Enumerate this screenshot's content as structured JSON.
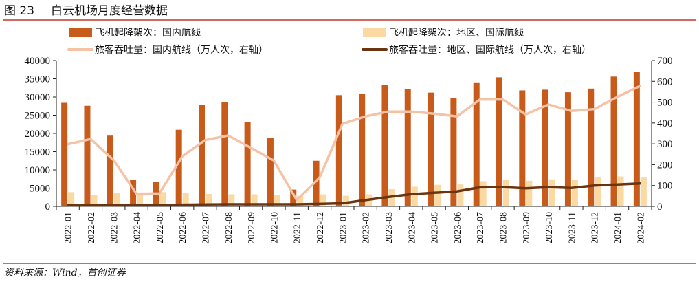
{
  "figure": {
    "label": "图 23",
    "title": "白云机场月度经营数据",
    "source": "资料来源：Wind，首创证券"
  },
  "colors": {
    "rule": "#c0392b",
    "bar_domestic": "#c85a1a",
    "bar_intl": "#fbd9a3",
    "line_domestic": "#f5c2a5",
    "line_intl": "#6b3410"
  },
  "chart_data": {
    "type": "bar",
    "categories": [
      "2022-01",
      "2022-02",
      "2022-03",
      "2022-04",
      "2022-05",
      "2022-06",
      "2022-07",
      "2022-08",
      "2022-09",
      "2022-10",
      "2022-11",
      "2022-12",
      "2023-01",
      "2023-02",
      "2023-03",
      "2023-04",
      "2023-05",
      "2023-06",
      "2023-07",
      "2023-08",
      "2023-09",
      "2023-10",
      "2023-11",
      "2023-12",
      "2024-01",
      "2024-02"
    ],
    "series": [
      {
        "name": "飞机起降架次：国内航线",
        "kind": "bar",
        "axis": "left",
        "values": [
          28400,
          27600,
          19400,
          7300,
          6800,
          21000,
          27900,
          28500,
          23200,
          18700,
          4600,
          12500,
          30500,
          30800,
          33300,
          32200,
          31200,
          29800,
          34000,
          35400,
          31800,
          32000,
          31300,
          32300,
          35600,
          36800
        ]
      },
      {
        "name": "飞机起降架次：地区、国际航线",
        "kind": "bar",
        "axis": "left",
        "values": [
          3900,
          3100,
          3700,
          3600,
          3900,
          3700,
          3400,
          3300,
          3300,
          3200,
          2900,
          3300,
          2900,
          3300,
          4700,
          5400,
          5900,
          6000,
          6900,
          7200,
          7000,
          7400,
          7300,
          7900,
          8200,
          7900
        ]
      },
      {
        "name": "旅客吞吐量：国内航线（万人次，右轴）",
        "kind": "line",
        "axis": "right",
        "values": [
          298,
          323,
          222,
          60,
          62,
          240,
          318,
          340,
          281,
          220,
          30,
          138,
          396,
          432,
          455,
          455,
          445,
          432,
          513,
          513,
          441,
          489,
          458,
          467,
          525,
          578
        ]
      },
      {
        "name": "旅客吞吐量：地区、国际航线（万人次，右轴）",
        "kind": "line",
        "axis": "right",
        "values": [
          5,
          5,
          5,
          6,
          6,
          8,
          9,
          10,
          10,
          10,
          10,
          12,
          15,
          30,
          45,
          58,
          65,
          72,
          91,
          92,
          87,
          92,
          88,
          100,
          105,
          110
        ]
      }
    ],
    "left_axis": {
      "ylim": [
        0,
        40000
      ],
      "ticks": [
        "0",
        "5000",
        "10000",
        "15000",
        "20000",
        "25000",
        "30000",
        "35000",
        "40000"
      ]
    },
    "right_axis": {
      "ylim": [
        0,
        700
      ],
      "ticks": [
        "0",
        "100",
        "200",
        "300",
        "400",
        "500",
        "600",
        "700"
      ]
    },
    "grid": false,
    "legend_position": "top"
  }
}
